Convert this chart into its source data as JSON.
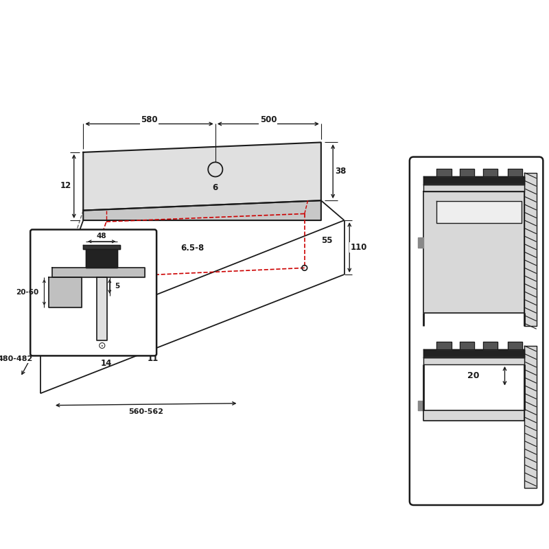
{
  "bg_color": "#ffffff",
  "lc": "#1a1a1a",
  "gray_light": "#d8d8d8",
  "gray_mid": "#c0c0c0",
  "gray_dark": "#888888",
  "black_fill": "#222222",
  "red": "#cc0000",
  "fs": 8.5,
  "fs_small": 7.5
}
